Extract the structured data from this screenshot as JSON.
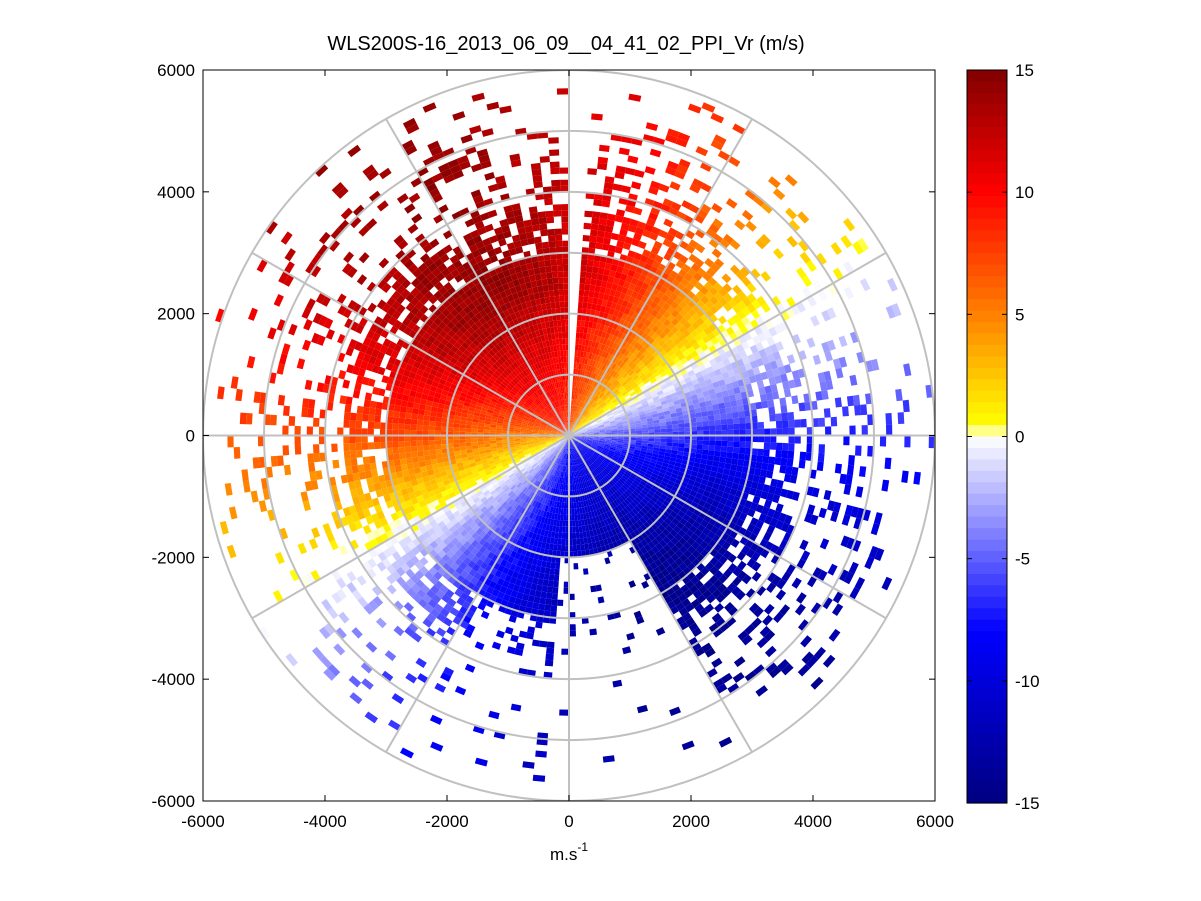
{
  "chart_data": {
    "type": "heatmap",
    "subtype": "polar-ppi",
    "title": "WLS200S-16_2013_06_09__04_41_02_PPI_Vr (m/s)",
    "xlabel": "m.s",
    "xlabel_superscript": "-1",
    "ylabel": "",
    "xlim": [
      -6000,
      6000
    ],
    "ylim": [
      -6000,
      6000
    ],
    "xticks": [
      -6000,
      -4000,
      -2000,
      0,
      2000,
      4000,
      6000
    ],
    "yticks": [
      -6000,
      -4000,
      -2000,
      0,
      2000,
      4000,
      6000
    ],
    "xtick_labels": [
      "-6000",
      "-4000",
      "-2000",
      "0",
      "2000",
      "4000",
      "6000"
    ],
    "ytick_labels": [
      "-6000",
      "-4000",
      "-2000",
      "0",
      "2000",
      "4000",
      "6000"
    ],
    "polar_grid": {
      "ring_radii": [
        1000,
        2000,
        3000,
        4000,
        5000,
        6000
      ],
      "spoke_angles_deg": [
        0,
        30,
        60,
        90,
        120,
        150,
        180,
        210,
        240,
        270,
        300,
        330
      ]
    },
    "data_extent": {
      "dense_radius": 3700,
      "max_radius": 6100,
      "zero_velocity_azimuth_deg": 60,
      "max_speed": 14,
      "missing_beam_azimuth_deg": 2
    },
    "colorbar": {
      "clim": [
        -15,
        15
      ],
      "ticks": [
        -15,
        -10,
        -5,
        0,
        5,
        10,
        15
      ],
      "tick_labels": [
        "-15",
        "-10",
        "-5",
        "0",
        "5",
        "10",
        "15"
      ],
      "colormap": "blue-white-yellow-red",
      "colors": {
        "neg_max": "#000080",
        "neg_mid": "#0000ff",
        "zero": "#ffffff",
        "pos_low": "#ffff00",
        "pos_mid": "#ff8000",
        "pos_high": "#ff0000",
        "pos_max": "#800000"
      }
    },
    "grid_color": "#c0c0c0"
  }
}
